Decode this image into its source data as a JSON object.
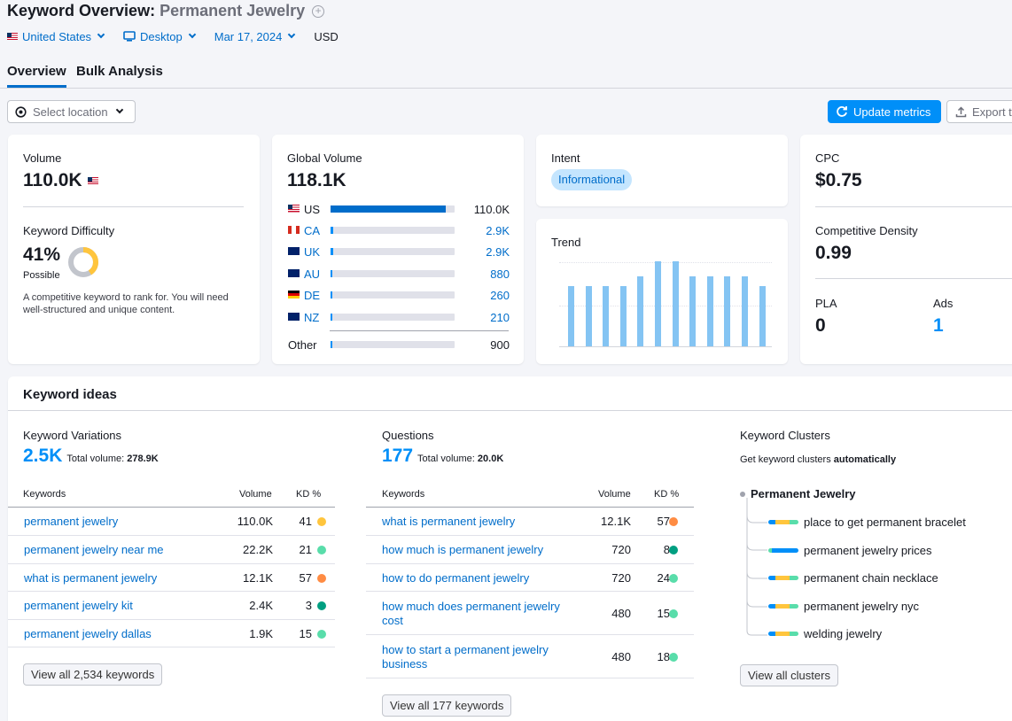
{
  "header": {
    "title_prefix": "Keyword Overview:",
    "keyword": "Permanent Jewelry",
    "filters": {
      "country": "United States",
      "device": "Desktop",
      "date": "Mar 17, 2024",
      "currency": "USD"
    }
  },
  "tabs": [
    "Overview",
    "Bulk Analysis"
  ],
  "toolbar": {
    "location_placeholder": "Select location",
    "update_label": "Update metrics",
    "export_label": "Export t"
  },
  "volume": {
    "label": "Volume",
    "value": "110.0K"
  },
  "difficulty": {
    "label": "Keyword Difficulty",
    "value": "41%",
    "rating": "Possible",
    "percent": 41,
    "description": "A competitive keyword to rank for. You will need well-structured and unique content."
  },
  "global_volume": {
    "label": "Global Volume",
    "value": "118.1K",
    "countries": [
      {
        "code": "US",
        "value": "110.0K",
        "share": 0.93
      },
      {
        "code": "CA",
        "value": "2.9K",
        "share": 0.02
      },
      {
        "code": "UK",
        "value": "2.9K",
        "share": 0.02
      },
      {
        "code": "AU",
        "value": "880",
        "share": 0.01
      },
      {
        "code": "DE",
        "value": "260",
        "share": 0.01
      },
      {
        "code": "NZ",
        "value": "210",
        "share": 0.01
      }
    ],
    "other": {
      "label": "Other",
      "value": "900",
      "share": 0.01
    }
  },
  "intent": {
    "label": "Intent",
    "badge": "Informational"
  },
  "trend": {
    "label": "Trend",
    "values": [
      0.71,
      0.71,
      0.71,
      0.71,
      0.82,
      1.0,
      1.0,
      0.82,
      0.82,
      0.82,
      0.82,
      0.71
    ]
  },
  "cpc": {
    "label": "CPC",
    "value": "$0.75"
  },
  "competitive_density": {
    "label": "Competitive Density",
    "value": "0.99"
  },
  "pla": {
    "label": "PLA",
    "value": "0"
  },
  "ads": {
    "label": "Ads",
    "value": "1"
  },
  "keyword_ideas": {
    "title": "Keyword ideas",
    "variations": {
      "label": "Keyword Variations",
      "count": "2.5K",
      "total_label": "Total volume:",
      "total_value": "278.9K",
      "headers": [
        "Keywords",
        "Volume",
        "KD %"
      ],
      "rows": [
        {
          "kw": "permanent jewelry",
          "vol": "110.0K",
          "kd": "41",
          "color": "#ffc53d"
        },
        {
          "kw": "permanent jewelry near me",
          "vol": "22.2K",
          "kd": "21",
          "color": "#59ddaa"
        },
        {
          "kw": "what is permanent jewelry",
          "vol": "12.1K",
          "kd": "57",
          "color": "#ff8c43"
        },
        {
          "kw": "permanent jewelry kit",
          "vol": "2.4K",
          "kd": "3",
          "color": "#009f81"
        },
        {
          "kw": "permanent jewelry dallas",
          "vol": "1.9K",
          "kd": "15",
          "color": "#59ddaa"
        }
      ],
      "view_all": "View all 2,534 keywords"
    },
    "questions": {
      "label": "Questions",
      "count": "177",
      "total_label": "Total volume:",
      "total_value": "20.0K",
      "headers": [
        "Keywords",
        "Volume",
        "KD %"
      ],
      "rows": [
        {
          "kw": "what is permanent jewelry",
          "vol": "12.1K",
          "kd": "57",
          "color": "#ff8c43"
        },
        {
          "kw": "how much is permanent jewelry",
          "vol": "720",
          "kd": "8",
          "color": "#009f81"
        },
        {
          "kw": "how to do permanent jewelry",
          "vol": "720",
          "kd": "24",
          "color": "#59ddaa"
        },
        {
          "kw": "how much does permanent jewelry cost",
          "vol": "480",
          "kd": "15",
          "color": "#59ddaa"
        },
        {
          "kw": "how to start a permanent jewelry business",
          "vol": "480",
          "kd": "18",
          "color": "#59ddaa"
        }
      ],
      "view_all": "View all 177 keywords"
    },
    "clusters": {
      "label": "Keyword Clusters",
      "subtitle_prefix": "Get keyword clusters",
      "subtitle_bold": "automatically",
      "root": "Permanent Jewelry",
      "items": [
        "place to get permanent bracelet",
        "permanent jewelry prices",
        "permanent chain necklace",
        "permanent jewelry nyc",
        "welding jewelry"
      ],
      "view_all": "View all clusters"
    }
  }
}
